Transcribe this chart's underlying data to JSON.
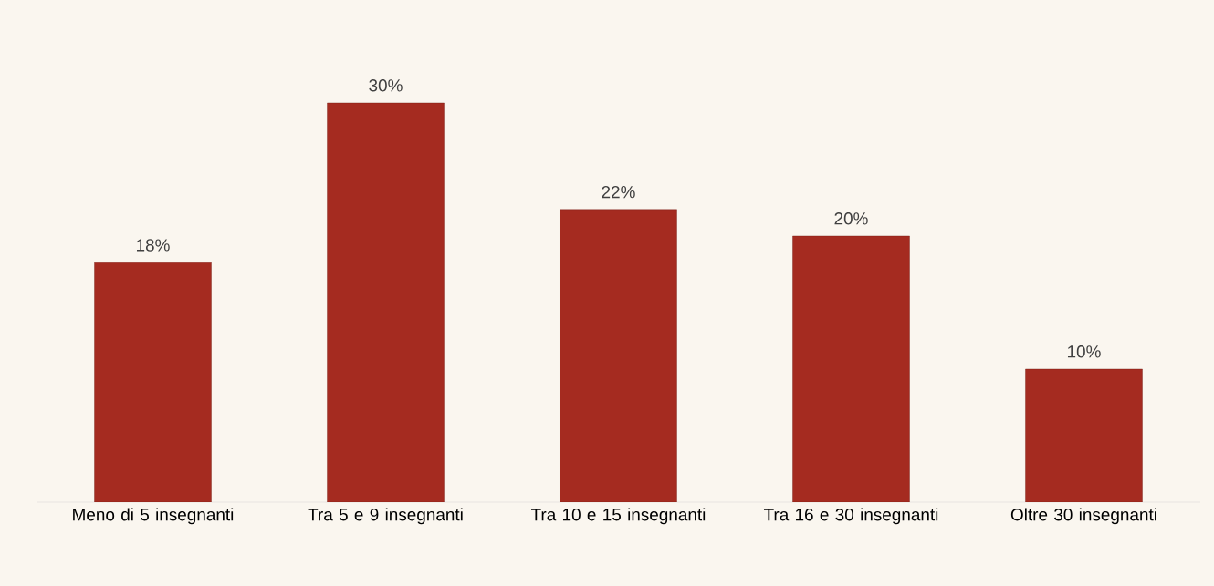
{
  "chart_data": {
    "type": "bar",
    "categories": [
      "Meno di 5 insegnanti",
      "Tra 5 e 9 insegnanti",
      "Tra 10 e 15 insegnanti",
      "Tra 16 e 30 insegnanti",
      "Oltre 30 insegnanti"
    ],
    "values": [
      18,
      30,
      22,
      20,
      10
    ],
    "value_labels": [
      "18%",
      "30%",
      "22%",
      "20%",
      "10%"
    ],
    "color": "#a52b20"
  }
}
